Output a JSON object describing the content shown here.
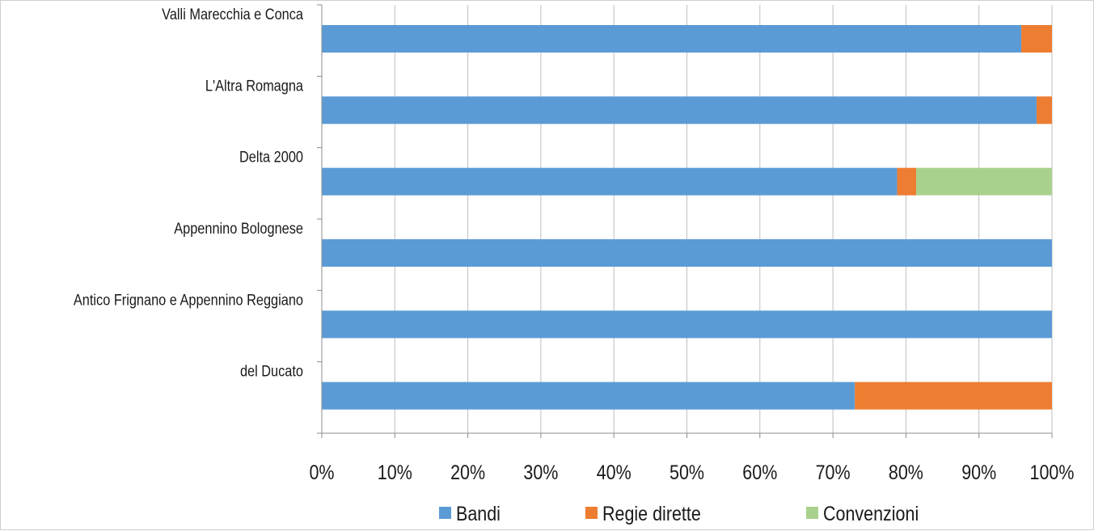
{
  "chart_data": {
    "type": "bar",
    "orientation": "horizontal",
    "stacked": "percent",
    "categories": [
      "Valli Marecchia e Conca",
      "L'Altra Romagna",
      "Delta 2000",
      "Appennino Bolognese",
      "Antico Frignano e Appennino Reggiano",
      "del Ducato"
    ],
    "series": [
      {
        "name": "Bandi",
        "color": "#5b9bd5",
        "values": [
          95.8,
          97.9,
          78.8,
          100,
          100,
          73.0
        ]
      },
      {
        "name": "Regie dirette",
        "color": "#ed7d31",
        "values": [
          4.2,
          2.1,
          2.6,
          0,
          0,
          27.0
        ]
      },
      {
        "name": "Convenzioni",
        "color": "#a9d18e",
        "values": [
          0,
          0,
          18.6,
          0,
          0,
          0
        ]
      }
    ],
    "x_ticks": [
      "0%",
      "10%",
      "20%",
      "30%",
      "40%",
      "50%",
      "60%",
      "70%",
      "80%",
      "90%",
      "100%"
    ],
    "xlim": [
      0,
      100
    ],
    "grid": "vertical",
    "legend_position": "bottom"
  }
}
